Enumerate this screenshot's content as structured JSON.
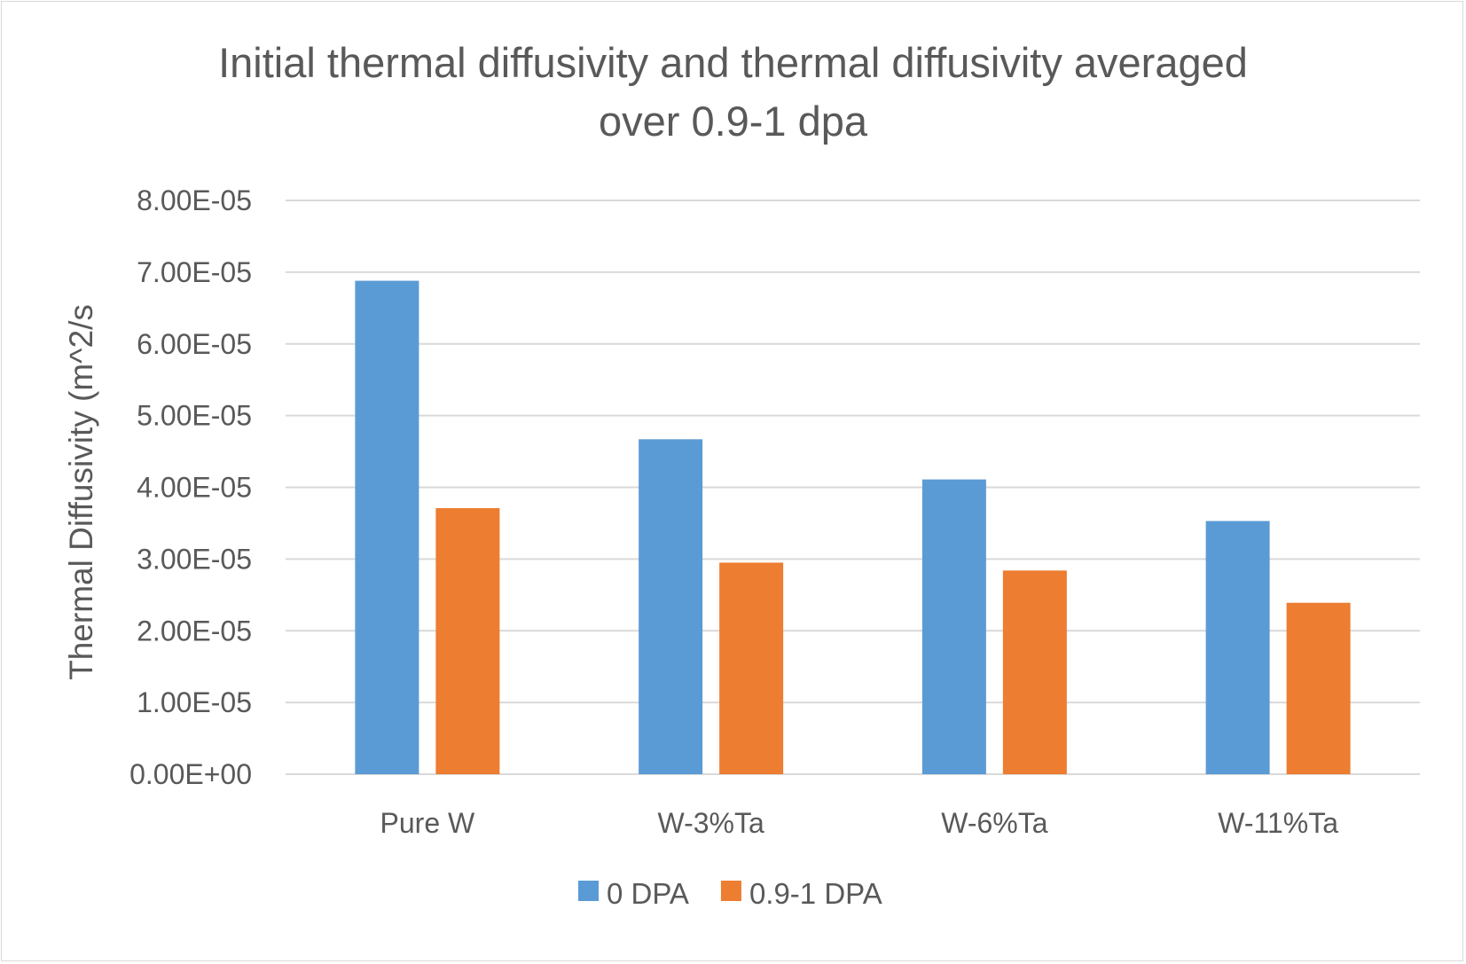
{
  "chart_data": {
    "type": "bar",
    "title_lines": [
      "Initial thermal diffusivity and thermal diffusivity averaged",
      "over 0.9-1 dpa"
    ],
    "xlabel": "",
    "ylabel": "Thermal Diffusivity (m^2/s",
    "categories": [
      "Pure W",
      "W-3%Ta",
      "W-6%Ta",
      "W-11%Ta"
    ],
    "series": [
      {
        "name": "0 DPA",
        "color": "#5b9bd5",
        "values": [
          6.88e-05,
          4.67e-05,
          4.11e-05,
          3.53e-05
        ]
      },
      {
        "name": "0.9-1 DPA",
        "color": "#ed7d31",
        "values": [
          3.71e-05,
          2.95e-05,
          2.84e-05,
          2.39e-05
        ]
      }
    ],
    "ylim": [
      0,
      8e-05
    ],
    "yticks": [
      {
        "value": 0,
        "label": "0.00E+00"
      },
      {
        "value": 1e-05,
        "label": "1.00E-05"
      },
      {
        "value": 2e-05,
        "label": "2.00E-05"
      },
      {
        "value": 3e-05,
        "label": "3.00E-05"
      },
      {
        "value": 4e-05,
        "label": "4.00E-05"
      },
      {
        "value": 5e-05,
        "label": "5.00E-05"
      },
      {
        "value": 6e-05,
        "label": "6.00E-05"
      },
      {
        "value": 7e-05,
        "label": "7.00E-05"
      },
      {
        "value": 8e-05,
        "label": "8.00E-05"
      }
    ],
    "grid": true,
    "legend_position": "bottom",
    "gridline_color": "#d9d9d9"
  }
}
